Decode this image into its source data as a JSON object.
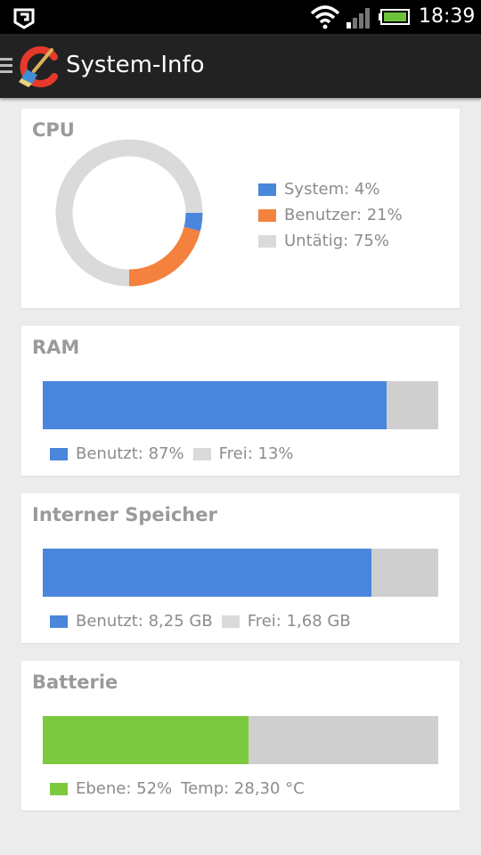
{
  "status_bar": {
    "time": "18:39",
    "icons": [
      "htc-sense-icon",
      "wifi-icon",
      "signal-icon",
      "battery-icon"
    ]
  },
  "action_bar": {
    "title": "System-Info",
    "icons": [
      "menu-icon",
      "ccleaner-logo-icon"
    ]
  },
  "colors": {
    "blue": "#4a86dc",
    "orange": "#f5813f",
    "gray": "#dadada",
    "bar_gray": "#cfcfcf",
    "green": "#7cc940"
  },
  "cpu": {
    "title": "CPU",
    "legend": [
      {
        "label": "System: 4%",
        "value": 4,
        "color": "#4a86dc"
      },
      {
        "label": "Benutzer: 21%",
        "value": 21,
        "color": "#f5813f"
      },
      {
        "label": "Untätig: 75%",
        "value": 75,
        "color": "#dadada"
      }
    ]
  },
  "ram": {
    "title": "RAM",
    "used_fraction": 0.87,
    "used_label": "Benutzt: 87%",
    "free_label": "Frei: 13%"
  },
  "storage": {
    "title": "Interner Speicher",
    "used_fraction": 0.83,
    "used_label": "Benutzt: 8,25 GB",
    "free_label": "Frei: 1,68 GB"
  },
  "battery": {
    "title": "Batterie",
    "level_fraction": 0.52,
    "level_label": "Ebene: 52%",
    "temp_label": "Temp: 28,30 °C"
  }
}
